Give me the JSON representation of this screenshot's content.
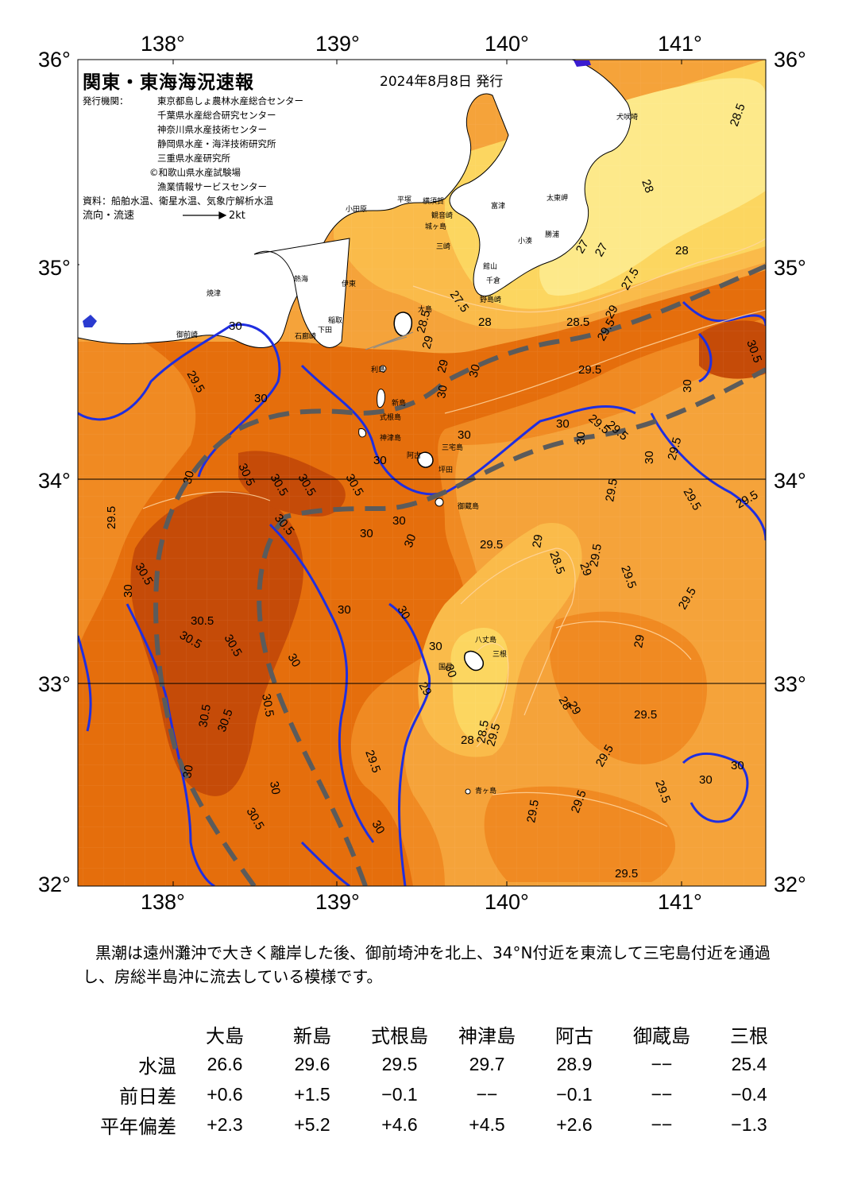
{
  "title": "関東・東海海況速報",
  "issue_date": "2024年8月8日 発行",
  "issuers_label": "発行機関：",
  "issuers": [
    "東京都島しょ農林水産総合センター",
    "千葉県水産総合研究センター",
    "神奈川県水産技術センター",
    "静岡県水産・海洋技術研究所",
    "三重県水産研究所",
    "©和歌山県水産試験場",
    "漁業情報サービスセンター"
  ],
  "source_line": "資料：船舶水温、衛星水温、気象庁解析水温",
  "flow_label": "流向・流速",
  "flow_scale_label": "2kt",
  "axes": {
    "lon_labels": [
      "138°",
      "139°",
      "140°",
      "141°"
    ],
    "lat_labels": [
      "36°",
      "35°",
      "34°",
      "33°",
      "32°"
    ]
  },
  "isotherm_labels": [
    "27",
    "27.5",
    "28",
    "28.5",
    "29",
    "29.5",
    "30",
    "30.5"
  ],
  "colors": {
    "t27": "#fde98a",
    "t28": "#fcd660",
    "t28_5": "#fabb4a",
    "t29": "#f5a33a",
    "t29_5": "#f08a22",
    "t30": "#e56e0c",
    "t30_5": "#c54b08",
    "land": "#ffffff",
    "isotherm_30": "#1f2ee0",
    "kuroshio_axis": "#5b5b5b"
  },
  "place_names": {
    "choshi": "犬吠埼",
    "taito": "太東岬",
    "katsuura": "勝浦",
    "kominato": "小湊",
    "nojima": "野島崎",
    "chikura": "千倉",
    "tateyama": "館山",
    "futtsu": "富津",
    "kannonzaki": "観音崎",
    "yokosuka": "横須賀",
    "misaki": "三崎",
    "jogashima": "城ヶ島",
    "hiratsuka": "平塚",
    "odawara": "小田原",
    "atami": "熱海",
    "ito": "伊東",
    "inatori": "稲取",
    "yaizu": "焼津",
    "omaezaki": "御前崎",
    "shimoda": "下田",
    "irozaki": "石廊崎",
    "oshima": "大島",
    "toshima": "利島",
    "niijima": "新島",
    "shikinejima": "式根島",
    "kozushima": "神津島",
    "miyake": "三宅島",
    "ako": "阿古",
    "tsubota": "坪田",
    "mikurajima": "御蔵島",
    "hachijojima": "八丈島",
    "mitsune": "三根",
    "aogashima": "青ヶ島",
    "kunimi": "国見"
  },
  "comment": "黒潮は遠州灘沖で大きく離岸した後、御前埼沖を北上、34°N付近を東流して三宅島付近を通過し、房総半島沖に流去している模様です。",
  "table": {
    "stations": [
      "大島",
      "新島",
      "式根島",
      "神津島",
      "阿古",
      "御蔵島",
      "三根"
    ],
    "rows": [
      {
        "label": "水温",
        "values": [
          "26.6",
          "29.6",
          "29.5",
          "29.7",
          "28.9",
          "−−",
          "25.4"
        ]
      },
      {
        "label": "前日差",
        "values": [
          "+0.6",
          "+1.5",
          "−0.1",
          "−−",
          "−0.1",
          "−−",
          "−0.4"
        ]
      },
      {
        "label": "平年偏差",
        "values": [
          "+2.3",
          "+5.2",
          "+4.6",
          "+4.5",
          "+2.6",
          "−−",
          "−1.3"
        ]
      }
    ]
  }
}
